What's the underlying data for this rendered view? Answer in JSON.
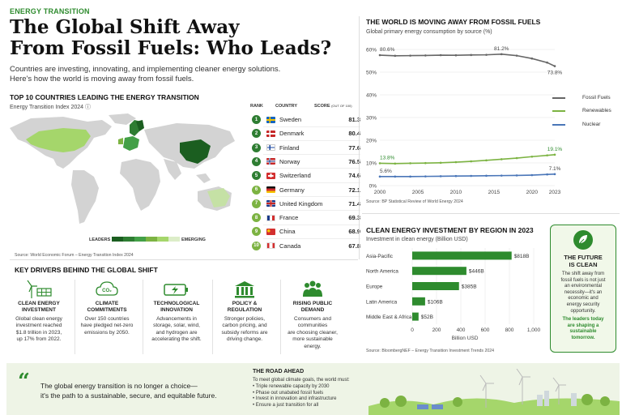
{
  "header": {
    "eyebrow": "ENERGY TRANSITION",
    "title_line1": "The Global Shift Away",
    "title_line2": "From Fossil Fuels: Who Leads?",
    "intro_line1": "Countries are investing, innovating, and implementing cleaner energy solutions.",
    "intro_line2": "Here's how the world is moving away from fossil fuels."
  },
  "top10": {
    "heading": "TOP 10 COUNTRIES LEADING THE ENERGY TRANSITION",
    "subheading": "Energy Transition Index 2024 ⓘ",
    "col_rank": "RANK",
    "col_country": "COUNTRY",
    "col_score": "SCORE",
    "col_score_note": "(OUT OF 100)",
    "legend_left": "LEADERS",
    "legend_right": "EMERGING",
    "source": "Source: World Economic Forum – Energy Transition Index 2024",
    "colors": {
      "rank_top": "#2e7d32",
      "rank_low": "#7cb342"
    },
    "rows": [
      {
        "rank": "1",
        "country": "Sweden",
        "score": "81.3",
        "flag": "sweden-flag-icon"
      },
      {
        "rank": "2",
        "country": "Denmark",
        "score": "80.4",
        "flag": "denmark-flag-icon"
      },
      {
        "rank": "3",
        "country": "Finland",
        "score": "77.6",
        "flag": "finland-flag-icon"
      },
      {
        "rank": "4",
        "country": "Norway",
        "score": "76.5",
        "flag": "norway-flag-icon"
      },
      {
        "rank": "5",
        "country": "Switzerland",
        "score": "74.6",
        "flag": "switzerland-flag-icon"
      },
      {
        "rank": "6",
        "country": "Germany",
        "score": "72.1",
        "flag": "germany-flag-icon"
      },
      {
        "rank": "7",
        "country": "United Kingdom",
        "score": "71.4",
        "flag": "uk-flag-icon"
      },
      {
        "rank": "8",
        "country": "France",
        "score": "69.3",
        "flag": "france-flag-icon"
      },
      {
        "rank": "9",
        "country": "China",
        "score": "68.9",
        "flag": "china-flag-icon"
      },
      {
        "rank": "10",
        "country": "Canada",
        "score": "67.8",
        "flag": "canada-flag-icon"
      }
    ]
  },
  "drivers": {
    "heading": "KEY DRIVERS BEHIND THE GLOBAL SHIFT",
    "items": [
      {
        "icon": "wind-solar-icon",
        "title1": "CLEAN ENERGY",
        "title2": "INVESTMENT",
        "text": [
          "Global clean energy",
          "investment reached",
          "$1.8 trillion in 2023,",
          "up 17% from 2022."
        ]
      },
      {
        "icon": "co2-cloud-icon",
        "title1": "CLIMATE",
        "title2": "COMMITMENTS",
        "text": [
          "Over 150 countries",
          "have pledged net-zero",
          "emissions by 2050."
        ]
      },
      {
        "icon": "battery-icon",
        "title1": "TECHNOLOGICAL",
        "title2": "INNOVATION",
        "text": [
          "Advancements in",
          "storage, solar, wind,",
          "and hydrogen are",
          "accelerating the shift."
        ]
      },
      {
        "icon": "government-building-icon",
        "title1": "POLICY &",
        "title2": "REGULATION",
        "text": [
          "Stronger policies,",
          "carbon pricing, and",
          "subsidy reforms are",
          "driving change."
        ]
      },
      {
        "icon": "people-icon",
        "title1": "RISING PUBLIC",
        "title2": "DEMAND",
        "text": [
          "Consumers and",
          "communities",
          "are choosing cleaner,",
          "more sustainable",
          "energy."
        ]
      }
    ]
  },
  "quote": {
    "line1": "The global energy transition is no longer a choice—",
    "line2": "it's the path to a sustainable, secure, and equitable future."
  },
  "road_ahead": {
    "heading": "THE ROAD AHEAD",
    "intro": "To meet global climate goals, the world must:",
    "items": [
      "Triple renewable capacity by 2030",
      "Phase out unabated fossil fuels",
      "Invest in innovation and infrastructure",
      "Ensure a just transition for all"
    ]
  },
  "future_box": {
    "title1": "THE FUTURE",
    "title2": "IS CLEAN",
    "body": [
      "The shift away from",
      "fossil fuels is not just",
      "an environmental",
      "necessity—it's an",
      "economic and",
      "energy security",
      "opportunity."
    ],
    "accent": [
      "The leaders today",
      "are shaping a",
      "sustainable",
      "tomorrow."
    ]
  },
  "chart_data": [
    {
      "type": "line",
      "title": "THE WORLD IS MOVING AWAY FROM FOSSIL FUELS",
      "subtitle": "Global primary energy consumption by source (%)",
      "x": [
        2000,
        2002,
        2004,
        2006,
        2008,
        2010,
        2012,
        2014,
        2016,
        2018,
        2020,
        2022,
        2023
      ],
      "xticks": [
        "2000",
        "2005",
        "2010",
        "2015",
        "2020",
        "2023"
      ],
      "yticks": [
        "60%",
        "50%",
        "40%",
        "30%",
        "20%",
        "10%",
        "0%"
      ],
      "ylim": [
        0,
        60
      ],
      "series": [
        {
          "name": "Fossil Fuels",
          "color": "#666666",
          "values": [
            80.6,
            80.2,
            80.3,
            80.4,
            80.6,
            80.5,
            80.7,
            80.8,
            81.2,
            80.3,
            78.5,
            76.0,
            73.8
          ]
        },
        {
          "name": "Renewables",
          "color": "#7cb342",
          "values": [
            13.8,
            13.6,
            13.8,
            13.9,
            14.1,
            14.5,
            15.0,
            15.6,
            16.3,
            17.0,
            17.9,
            18.7,
            19.1
          ]
        },
        {
          "name": "Nuclear",
          "color": "#4a76b8",
          "values": [
            5.6,
            5.6,
            5.6,
            5.7,
            5.8,
            5.9,
            6.0,
            6.1,
            6.2,
            6.3,
            6.5,
            6.9,
            7.1
          ]
        }
      ],
      "data_labels": [
        {
          "series": "Fossil Fuels",
          "x": 2000,
          "text": "80.6%"
        },
        {
          "series": "Fossil Fuels",
          "x": 2016,
          "text": "81.2%"
        },
        {
          "series": "Fossil Fuels",
          "x": 2023,
          "text": "73.8%"
        },
        {
          "series": "Renewables",
          "x": 2000,
          "text": "13.8%"
        },
        {
          "series": "Renewables",
          "x": 2023,
          "text": "19.1%"
        },
        {
          "series": "Nuclear",
          "x": 2000,
          "text": "5.6%"
        },
        {
          "series": "Nuclear",
          "x": 2023,
          "text": "7.1%"
        }
      ],
      "legend": "right",
      "grid": true,
      "source": "Source: BP Statistical Review of World Energy 2024"
    },
    {
      "type": "bar",
      "orientation": "horizontal",
      "title": "CLEAN ENERGY INVESTMENT BY REGION IN 2023",
      "subtitle": "Investment in clean energy (Billion USD)",
      "categories": [
        "Asia-Pacific",
        "North America",
        "Europe",
        "Latin America",
        "Middle East & Africa"
      ],
      "values": [
        818,
        446,
        385,
        106,
        52
      ],
      "value_labels": [
        "$818B",
        "$446B",
        "$385B",
        "$106B",
        "$52B"
      ],
      "xticks": [
        "0",
        "200",
        "400",
        "600",
        "800",
        "1,000"
      ],
      "xlim": [
        0,
        1000
      ],
      "xlabel": "Billion USD",
      "color": "#2e8b2e",
      "grid": true,
      "source": "Source: BloombergNEF – Energy Transition Investment Trends 2024"
    }
  ]
}
